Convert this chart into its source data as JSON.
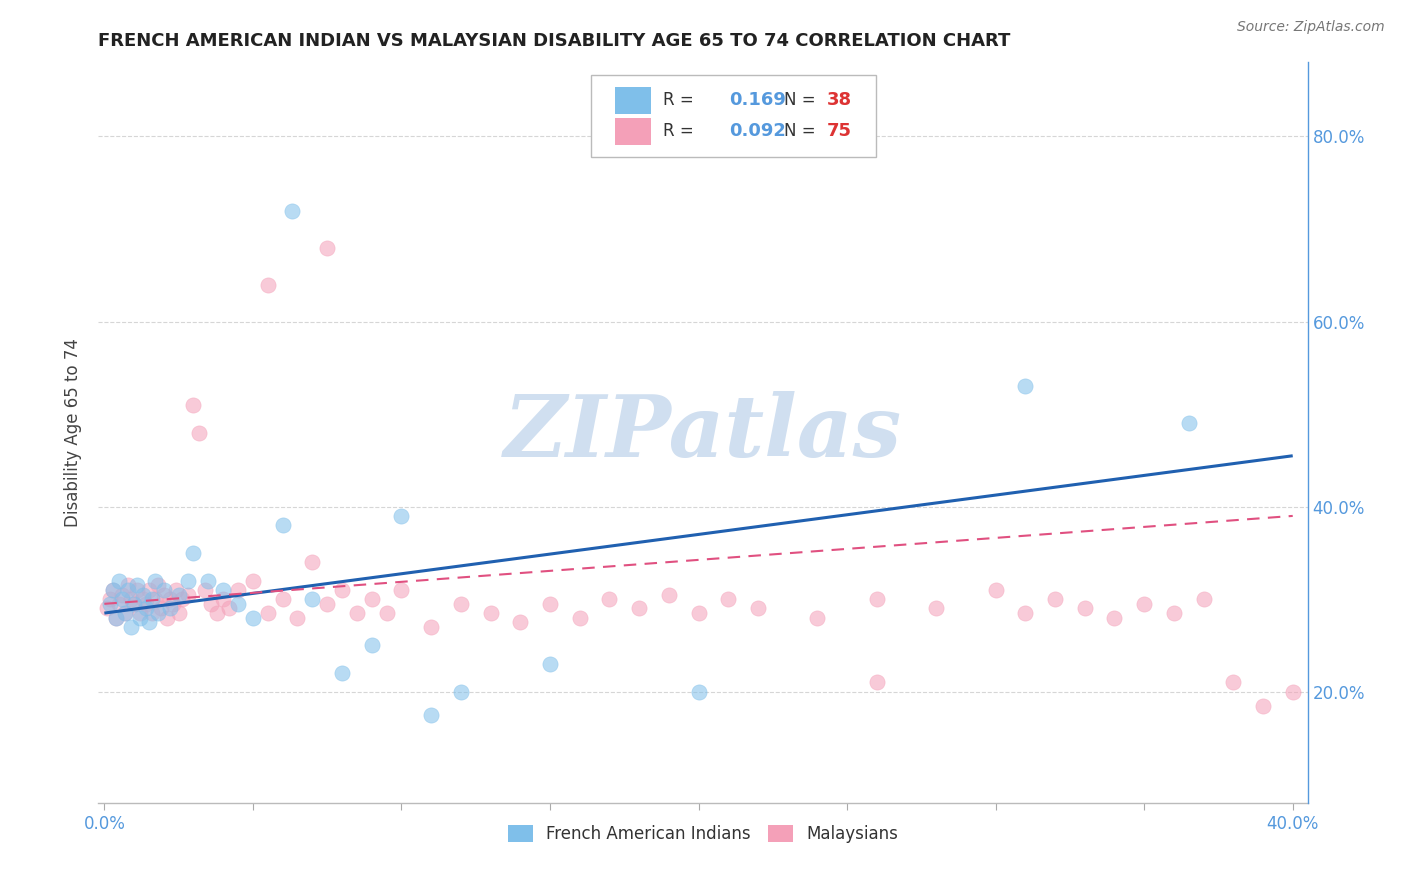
{
  "title": "FRENCH AMERICAN INDIAN VS MALAYSIAN DISABILITY AGE 65 TO 74 CORRELATION CHART",
  "source": "Source: ZipAtlas.com",
  "ylabel": "Disability Age 65 to 74",
  "xlim": [
    -0.002,
    0.405
  ],
  "ylim": [
    0.08,
    0.88
  ],
  "blue_color": "#7fbfea",
  "pink_color": "#f4a0b8",
  "blue_line_color": "#2060b0",
  "pink_line_color": "#e05080",
  "watermark_color": "#d0dff0",
  "title_color": "#222222",
  "axis_color": "#5599dd",
  "ylabel_color": "#444444",
  "right_ytick_labels": [
    "20.0%",
    "40.0%",
    "60.0%",
    "80.0%"
  ],
  "right_ytick_vals": [
    0.2,
    0.4,
    0.6,
    0.8
  ],
  "xtick_show": [
    0.0,
    0.4
  ],
  "blue_trend": [
    0.285,
    0.455
  ],
  "pink_trend": [
    0.295,
    0.39
  ],
  "french_x": [
    0.002,
    0.003,
    0.004,
    0.005,
    0.006,
    0.007,
    0.008,
    0.009,
    0.01,
    0.011,
    0.012,
    0.013,
    0.014,
    0.015,
    0.016,
    0.017,
    0.018,
    0.02,
    0.022,
    0.025,
    0.028,
    0.03,
    0.035,
    0.04,
    0.045,
    0.05,
    0.06,
    0.063,
    0.07,
    0.08,
    0.09,
    0.1,
    0.11,
    0.12,
    0.15,
    0.2,
    0.31,
    0.365
  ],
  "french_y": [
    0.295,
    0.31,
    0.28,
    0.32,
    0.3,
    0.285,
    0.31,
    0.27,
    0.295,
    0.315,
    0.28,
    0.305,
    0.29,
    0.275,
    0.3,
    0.32,
    0.285,
    0.31,
    0.29,
    0.305,
    0.32,
    0.35,
    0.32,
    0.31,
    0.295,
    0.28,
    0.38,
    0.72,
    0.3,
    0.22,
    0.25,
    0.39,
    0.175,
    0.2,
    0.23,
    0.2,
    0.53,
    0.49
  ],
  "malay_x": [
    0.001,
    0.002,
    0.003,
    0.004,
    0.005,
    0.006,
    0.007,
    0.008,
    0.009,
    0.01,
    0.011,
    0.012,
    0.013,
    0.014,
    0.015,
    0.016,
    0.017,
    0.018,
    0.019,
    0.02,
    0.021,
    0.022,
    0.023,
    0.024,
    0.025,
    0.026,
    0.028,
    0.03,
    0.032,
    0.034,
    0.036,
    0.038,
    0.04,
    0.042,
    0.045,
    0.05,
    0.055,
    0.06,
    0.065,
    0.07,
    0.075,
    0.08,
    0.085,
    0.09,
    0.095,
    0.1,
    0.11,
    0.12,
    0.13,
    0.14,
    0.15,
    0.16,
    0.17,
    0.18,
    0.19,
    0.2,
    0.21,
    0.22,
    0.24,
    0.26,
    0.28,
    0.3,
    0.31,
    0.32,
    0.33,
    0.34,
    0.35,
    0.36,
    0.37,
    0.38,
    0.39,
    0.4,
    0.055,
    0.075,
    0.26
  ],
  "malay_y": [
    0.29,
    0.3,
    0.31,
    0.28,
    0.295,
    0.305,
    0.285,
    0.315,
    0.3,
    0.295,
    0.31,
    0.285,
    0.3,
    0.295,
    0.31,
    0.285,
    0.3,
    0.315,
    0.29,
    0.305,
    0.28,
    0.3,
    0.295,
    0.31,
    0.285,
    0.3,
    0.305,
    0.51,
    0.48,
    0.31,
    0.295,
    0.285,
    0.3,
    0.29,
    0.31,
    0.32,
    0.285,
    0.3,
    0.28,
    0.34,
    0.295,
    0.31,
    0.285,
    0.3,
    0.285,
    0.31,
    0.27,
    0.295,
    0.285,
    0.275,
    0.295,
    0.28,
    0.3,
    0.29,
    0.305,
    0.285,
    0.3,
    0.29,
    0.28,
    0.3,
    0.29,
    0.31,
    0.285,
    0.3,
    0.29,
    0.28,
    0.295,
    0.285,
    0.3,
    0.21,
    0.185,
    0.2,
    0.64,
    0.68,
    0.21
  ]
}
